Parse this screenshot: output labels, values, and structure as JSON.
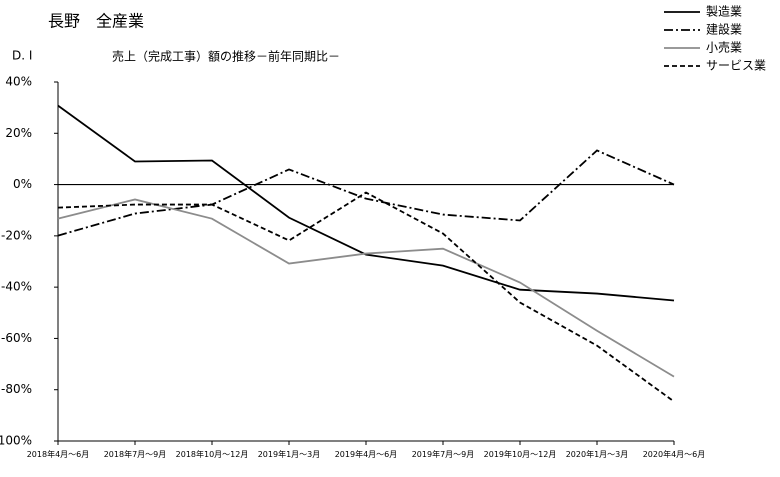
{
  "chart_data": {
    "type": "line",
    "title": "長野　全産業",
    "y_label": "D. I",
    "subtitle": "売上（完成工事）額の推移－前年同期比－",
    "categories": [
      "2018年4月～6月",
      "2018年7月～9月",
      "2018年10月～12月",
      "2019年1月～3月",
      "2019年4月～6月",
      "2019年7月～9月",
      "2019年10月～12月",
      "2020年1月～3月",
      "2020年4月～6月"
    ],
    "series": [
      {
        "name": "製造業",
        "color": "#000000",
        "style": "solid",
        "values": [
          30.8,
          9,
          9.4,
          -12.9,
          -27.3,
          -31.6,
          -41,
          -42.5,
          -45.2
        ]
      },
      {
        "name": "建設業",
        "color": "#000000",
        "style": "dash-dot",
        "values": [
          -19.9,
          -11.3,
          -7.8,
          5.9,
          -5.5,
          -11.7,
          -14,
          13.3,
          0
        ]
      },
      {
        "name": "小売業",
        "color": "#8c8c8c",
        "style": "solid",
        "values": [
          -13.3,
          -5.8,
          -13.3,
          -30.8,
          -26.9,
          -25,
          -38.2,
          -57,
          -74.9
        ]
      },
      {
        "name": "サービス業",
        "color": "#000000",
        "style": "dashed",
        "values": [
          -9,
          -7.8,
          -7.8,
          -21.8,
          -3.1,
          -19.1,
          -46,
          -62.8,
          -84.6
        ]
      }
    ],
    "ylim": [
      -100,
      40
    ],
    "yticks": [
      {
        "value": 40,
        "label": "40%"
      },
      {
        "value": 20,
        "label": "20%"
      },
      {
        "value": 0,
        "label": "0%"
      },
      {
        "value": -20,
        "label": "-20%"
      },
      {
        "value": -40,
        "label": "-40%"
      },
      {
        "value": -60,
        "label": "-60%"
      },
      {
        "value": -80,
        "label": "-80%"
      },
      {
        "value": -100,
        "label": "-100%"
      }
    ],
    "zero_line": true,
    "legend": "top-right"
  }
}
